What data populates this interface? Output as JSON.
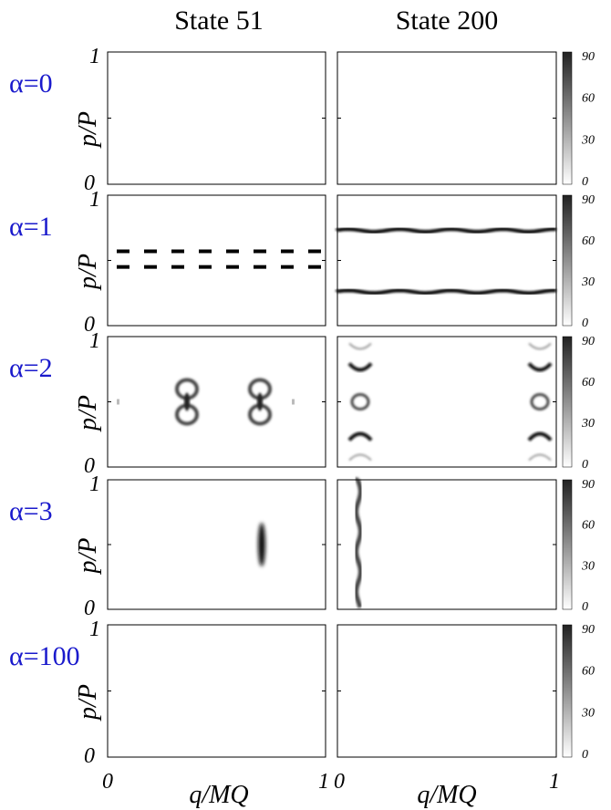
{
  "columns": [
    "State 51",
    "State 200"
  ],
  "rows": [
    {
      "label": "α=0",
      "y_label": "p/P",
      "y_ticks": [
        "1",
        "0"
      ],
      "colorbar_ticks": [
        "90",
        "60",
        "30",
        "0"
      ]
    },
    {
      "label": "α=1",
      "y_label": "p/P",
      "y_ticks": [
        "1",
        "0"
      ],
      "colorbar_ticks": [
        "90",
        "60",
        "30",
        "0"
      ]
    },
    {
      "label": "α=2",
      "y_label": "p/P",
      "y_ticks": [
        "1",
        "0"
      ],
      "colorbar_ticks": [
        "90",
        "60",
        "30",
        "0"
      ]
    },
    {
      "label": "α=3",
      "y_label": "p/P",
      "y_ticks": [
        "1",
        "0"
      ],
      "colorbar_ticks": [
        "90",
        "60",
        "30",
        "0"
      ]
    },
    {
      "label": "α=100",
      "y_label": "p/P",
      "y_ticks": [
        "1",
        "0"
      ],
      "colorbar_ticks": [
        "90",
        "60",
        "30",
        "0"
      ]
    }
  ],
  "x_axes": [
    {
      "label": "q/MQ",
      "ticks": [
        "0",
        "1"
      ]
    },
    {
      "label": "q/MQ",
      "ticks": [
        "0",
        "1"
      ]
    }
  ]
}
